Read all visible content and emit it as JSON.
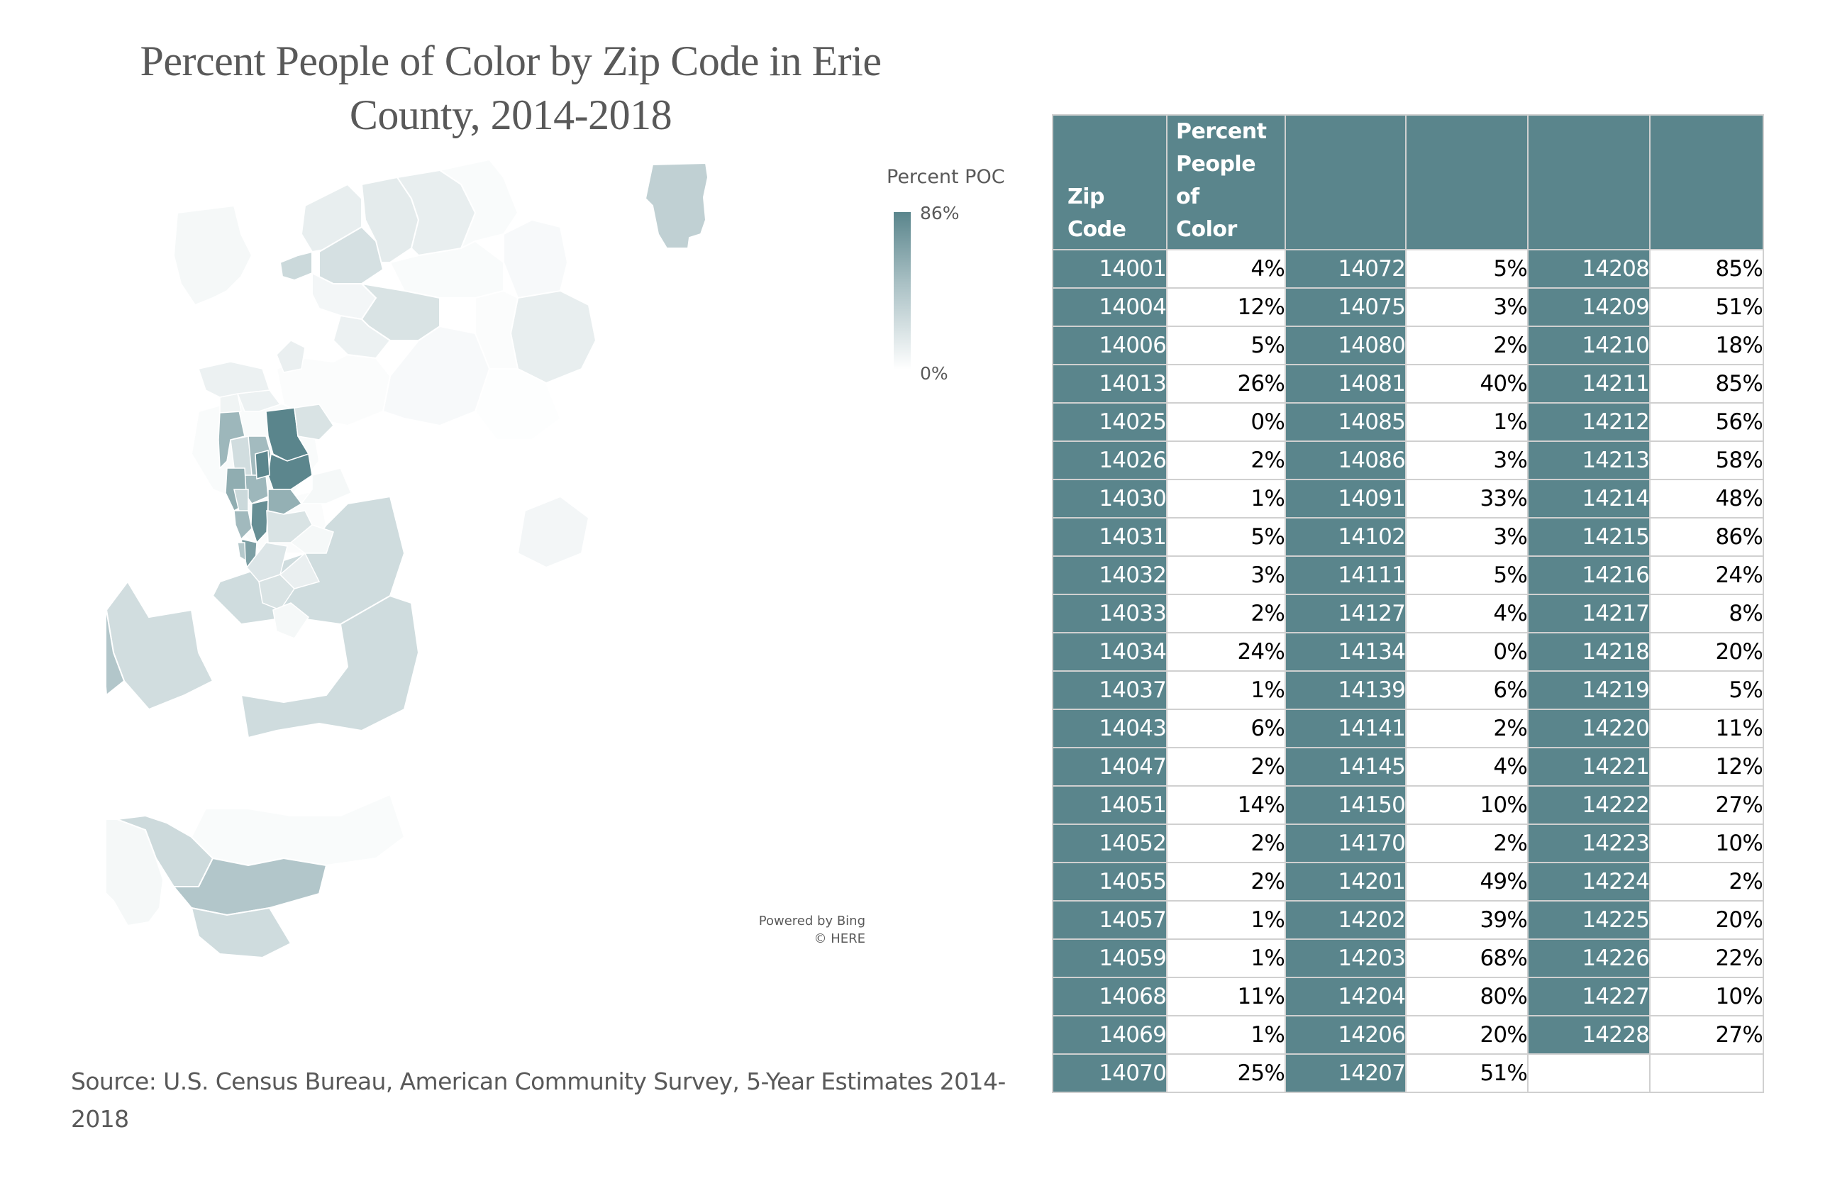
{
  "title": {
    "line1": "Percent People of Color by Zip Code in Erie",
    "line2": "County, 2014-2018"
  },
  "legend": {
    "title": "Percent POC",
    "max_label": "86%",
    "min_label": "0%",
    "max_value": 86,
    "min_value": 0,
    "color_high": "#5a858c",
    "color_low": "#ffffff"
  },
  "attribution": {
    "line1": "Powered by Bing",
    "line2": "© HERE"
  },
  "source": "Source: U.S. Census Bureau, American Community Survey, 5-Year Estimates 2014-2018",
  "colors": {
    "header_bg": "#5a858c",
    "zip_cell_bg": "#5a858c",
    "text_gray": "#595959",
    "grid": "#d0d0d0"
  },
  "table": {
    "headers": [
      "Zip Code",
      "Percent People of Color",
      "",
      "",
      "",
      ""
    ],
    "rows": [
      [
        "14001",
        "4%",
        "14072",
        "5%",
        "14208",
        "85%"
      ],
      [
        "14004",
        "12%",
        "14075",
        "3%",
        "14209",
        "51%"
      ],
      [
        "14006",
        "5%",
        "14080",
        "2%",
        "14210",
        "18%"
      ],
      [
        "14013",
        "26%",
        "14081",
        "40%",
        "14211",
        "85%"
      ],
      [
        "14025",
        "0%",
        "14085",
        "1%",
        "14212",
        "56%"
      ],
      [
        "14026",
        "2%",
        "14086",
        "3%",
        "14213",
        "58%"
      ],
      [
        "14030",
        "1%",
        "14091",
        "33%",
        "14214",
        "48%"
      ],
      [
        "14031",
        "5%",
        "14102",
        "3%",
        "14215",
        "86%"
      ],
      [
        "14032",
        "3%",
        "14111",
        "5%",
        "14216",
        "24%"
      ],
      [
        "14033",
        "2%",
        "14127",
        "4%",
        "14217",
        "8%"
      ],
      [
        "14034",
        "24%",
        "14134",
        "0%",
        "14218",
        "20%"
      ],
      [
        "14037",
        "1%",
        "14139",
        "6%",
        "14219",
        "5%"
      ],
      [
        "14043",
        "6%",
        "14141",
        "2%",
        "14220",
        "11%"
      ],
      [
        "14047",
        "2%",
        "14145",
        "4%",
        "14221",
        "12%"
      ],
      [
        "14051",
        "14%",
        "14150",
        "10%",
        "14222",
        "27%"
      ],
      [
        "14052",
        "2%",
        "14170",
        "2%",
        "14223",
        "10%"
      ],
      [
        "14055",
        "2%",
        "14201",
        "49%",
        "14224",
        "2%"
      ],
      [
        "14057",
        "1%",
        "14202",
        "39%",
        "14225",
        "20%"
      ],
      [
        "14059",
        "1%",
        "14203",
        "68%",
        "14226",
        "22%"
      ],
      [
        "14068",
        "11%",
        "14204",
        "80%",
        "14227",
        "10%"
      ],
      [
        "14069",
        "1%",
        "14206",
        "20%",
        "14228",
        "27%"
      ],
      [
        "14070",
        "25%",
        "14207",
        "51%",
        "",
        ""
      ]
    ]
  },
  "map_regions": [
    {
      "zip": "14215",
      "value": 86
    },
    {
      "zip": "14211",
      "value": 85
    },
    {
      "zip": "14208",
      "value": 85
    },
    {
      "zip": "14204",
      "value": 80
    },
    {
      "zip": "14203",
      "value": 68
    },
    {
      "zip": "14213",
      "value": 58
    },
    {
      "zip": "14212",
      "value": 56
    },
    {
      "zip": "14209",
      "value": 51
    },
    {
      "zip": "14207",
      "value": 51
    },
    {
      "zip": "14201",
      "value": 49
    },
    {
      "zip": "14214",
      "value": 48
    },
    {
      "zip": "14081",
      "value": 40
    },
    {
      "zip": "14202",
      "value": 39
    },
    {
      "zip": "14091",
      "value": 33
    },
    {
      "zip": "14222",
      "value": 27
    },
    {
      "zip": "14228",
      "value": 27
    },
    {
      "zip": "14013",
      "value": 26
    },
    {
      "zip": "14070",
      "value": 25
    },
    {
      "zip": "14034",
      "value": 24
    },
    {
      "zip": "14216",
      "value": 24
    },
    {
      "zip": "14226",
      "value": 22
    },
    {
      "zip": "14218",
      "value": 20
    },
    {
      "zip": "14225",
      "value": 20
    },
    {
      "zip": "14206",
      "value": 20
    },
    {
      "zip": "14210",
      "value": 18
    },
    {
      "zip": "14051",
      "value": 14
    },
    {
      "zip": "14221",
      "value": 12
    },
    {
      "zip": "14004",
      "value": 12
    },
    {
      "zip": "14220",
      "value": 11
    },
    {
      "zip": "14068",
      "value": 11
    },
    {
      "zip": "14150",
      "value": 10
    },
    {
      "zip": "14223",
      "value": 10
    },
    {
      "zip": "14227",
      "value": 10
    },
    {
      "zip": "14217",
      "value": 8
    },
    {
      "zip": "14139",
      "value": 6
    },
    {
      "zip": "14043",
      "value": 6
    },
    {
      "zip": "14031",
      "value": 5
    },
    {
      "zip": "14006",
      "value": 5
    },
    {
      "zip": "14072",
      "value": 5
    },
    {
      "zip": "14219",
      "value": 5
    },
    {
      "zip": "14111",
      "value": 5
    },
    {
      "zip": "14001",
      "value": 4
    },
    {
      "zip": "14127",
      "value": 4
    },
    {
      "zip": "14145",
      "value": 4
    },
    {
      "zip": "14075",
      "value": 3
    },
    {
      "zip": "14032",
      "value": 3
    },
    {
      "zip": "14086",
      "value": 3
    },
    {
      "zip": "14102",
      "value": 3
    },
    {
      "zip": "14026",
      "value": 2
    },
    {
      "zip": "14052",
      "value": 2
    },
    {
      "zip": "14224",
      "value": 2
    },
    {
      "zip": "14059",
      "value": 1
    },
    {
      "zip": "14025",
      "value": 0
    }
  ]
}
